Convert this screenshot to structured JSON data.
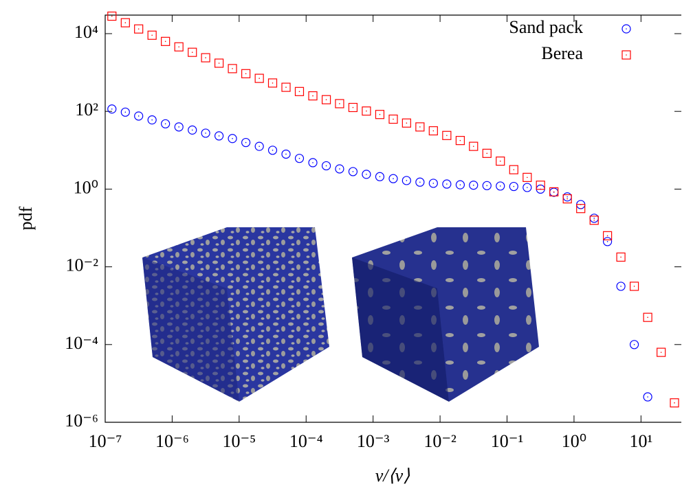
{
  "chart_data": {
    "type": "scatter",
    "x_label": "v/⟨v⟩",
    "y_label": "pdf",
    "log_x": true,
    "log_y": true,
    "legend": "upper right",
    "xlim": [
      1e-07,
      40
    ],
    "ylim": [
      1e-06,
      30000
    ],
    "xticks": [
      {
        "value": 1e-07,
        "label": "10⁻⁷"
      },
      {
        "value": 1e-06,
        "label": "10⁻⁶"
      },
      {
        "value": 1e-05,
        "label": "10⁻⁵"
      },
      {
        "value": 0.0001,
        "label": "10⁻⁴"
      },
      {
        "value": 0.001,
        "label": "10⁻³"
      },
      {
        "value": 0.01,
        "label": "10⁻²"
      },
      {
        "value": 0.1,
        "label": "10⁻¹"
      },
      {
        "value": 1,
        "label": "10⁰"
      },
      {
        "value": 10,
        "label": "10¹"
      }
    ],
    "yticks": [
      {
        "value": 1e-06,
        "label": "10⁻⁶"
      },
      {
        "value": 0.0001,
        "label": "10⁻⁴"
      },
      {
        "value": 0.01,
        "label": "10⁻²"
      },
      {
        "value": 1,
        "label": "10⁰"
      },
      {
        "value": 100,
        "label": "10²"
      },
      {
        "value": 10000,
        "label": "10⁴"
      }
    ],
    "series": [
      {
        "name": "Sand pack",
        "color": "#0000ff",
        "marker": "circle",
        "x": [
          1.26e-07,
          2e-07,
          3.16e-07,
          5.01e-07,
          7.94e-07,
          1.26e-06,
          2e-06,
          3.16e-06,
          5.01e-06,
          7.94e-06,
          1.26e-05,
          2e-05,
          3.16e-05,
          5.01e-05,
          7.94e-05,
          0.000126,
          0.0002,
          0.000316,
          0.000501,
          0.000794,
          0.00126,
          0.002,
          0.00316,
          0.00501,
          0.00794,
          0.0126,
          0.02,
          0.0316,
          0.0501,
          0.0794,
          0.126,
          0.2,
          0.316,
          0.501,
          0.794,
          1.26,
          2,
          3.16,
          5.01,
          7.94,
          12.6
        ],
        "values": [
          115,
          95.5,
          75.9,
          60.3,
          47.9,
          39.8,
          33.1,
          27.5,
          23.4,
          20,
          15.8,
          12.6,
          10,
          7.94,
          6.17,
          4.79,
          3.98,
          3.31,
          2.82,
          2.4,
          2.09,
          1.86,
          1.66,
          1.51,
          1.41,
          1.35,
          1.29,
          1.26,
          1.23,
          1.2,
          1.17,
          1.1,
          1,
          0.83,
          0.63,
          0.4,
          0.178,
          0.0447,
          0.00316,
          0.0001,
          4.5e-06
        ]
      },
      {
        "name": "Berea",
        "color": "#ff0000",
        "marker": "square",
        "x": [
          1.26e-07,
          2e-07,
          3.16e-07,
          5.01e-07,
          7.94e-07,
          1.26e-06,
          2e-06,
          3.16e-06,
          5.01e-06,
          7.94e-06,
          1.26e-05,
          2e-05,
          3.16e-05,
          5.01e-05,
          7.94e-05,
          0.000126,
          0.0002,
          0.000316,
          0.000501,
          0.000794,
          0.00126,
          0.002,
          0.00316,
          0.00501,
          0.00794,
          0.0126,
          0.02,
          0.0316,
          0.0501,
          0.0794,
          0.126,
          0.2,
          0.316,
          0.501,
          0.794,
          1.26,
          2,
          3.16,
          5.01,
          7.94,
          12.6,
          20,
          31.6
        ],
        "values": [
          28200,
          19100,
          13200,
          9120,
          6310,
          4570,
          3310,
          2400,
          1740,
          1260,
          933,
          708,
          537,
          417,
          324,
          251,
          200,
          158,
          126,
          102,
          83.2,
          63.1,
          50.1,
          39.8,
          31.6,
          24,
          17.8,
          12.6,
          8.32,
          5.25,
          3.16,
          2,
          1.26,
          0.851,
          0.562,
          0.316,
          0.158,
          0.0631,
          0.0178,
          0.00316,
          0.000501,
          6.31e-05,
          3.16e-06
        ]
      }
    ]
  }
}
